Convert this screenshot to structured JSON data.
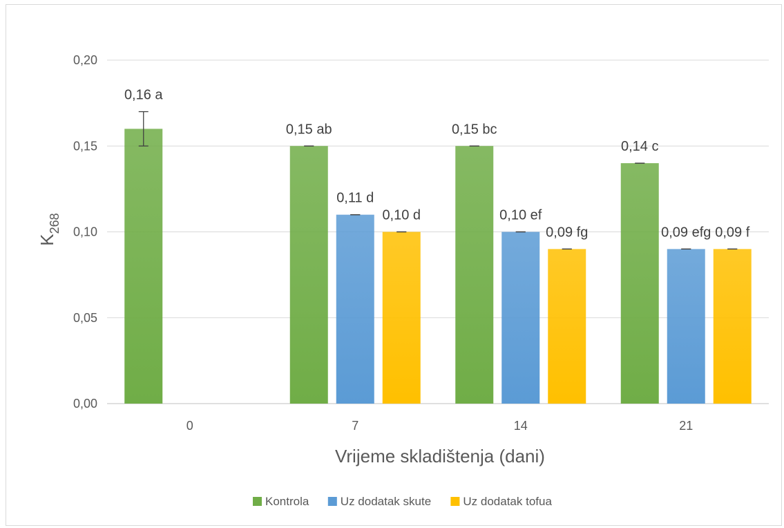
{
  "chart_data": {
    "type": "bar",
    "xlabel": "Vrijeme skladištenja (dani)",
    "ylabel": "K",
    "ylabel_subscript": "268",
    "categories": [
      "0",
      "7",
      "14",
      "21"
    ],
    "ylim": [
      0,
      0.2
    ],
    "yticks": [
      "0,00",
      "0,05",
      "0,10",
      "0,15",
      "0,20"
    ],
    "ytick_values": [
      0,
      0.05,
      0.1,
      0.15,
      0.2
    ],
    "grid": true,
    "legend_position": "bottom",
    "series": [
      {
        "name": "Kontrola",
        "color": "#70ad47",
        "values": [
          0.16,
          0.15,
          0.15,
          0.14
        ],
        "errors": [
          0.01,
          0,
          0,
          0
        ],
        "labels": [
          "0,16 a",
          "0,15 ab",
          "0,15 bc",
          "0,14 c"
        ]
      },
      {
        "name": "Uz dodatak skute",
        "color": "#5b9bd5",
        "values": [
          null,
          0.11,
          0.1,
          0.09
        ],
        "errors": [
          null,
          0,
          0,
          0
        ],
        "labels": [
          "",
          "0,11 d",
          "0,10 ef",
          "0,09 efg"
        ]
      },
      {
        "name": "Uz dodatak tofua",
        "color": "#ffc000",
        "values": [
          null,
          0.1,
          0.09,
          0.09
        ],
        "errors": [
          null,
          0,
          0,
          0
        ],
        "labels": [
          "",
          "0,10 d",
          "0,09 fg",
          "0,09 f"
        ]
      }
    ]
  }
}
